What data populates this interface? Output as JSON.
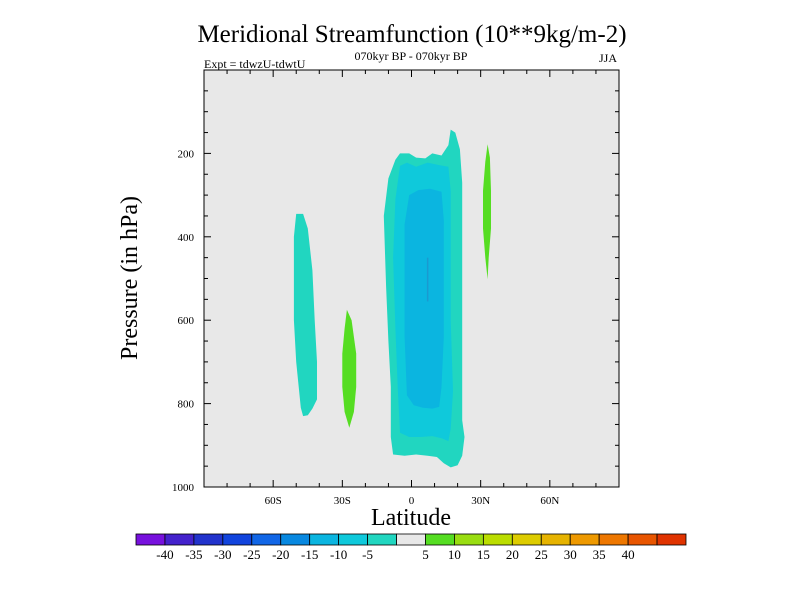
{
  "chart_data": {
    "type": "contour",
    "title": "Meridional Streamfunction (10**9kg/m-2)",
    "subtitle_left": "Expt = tdwzU-tdwtU",
    "subtitle_center": "070kyr BP - 070kyr BP",
    "subtitle_right": "JJA",
    "xlabel": "Latitude",
    "ylabel": "Pressure (in hPa)",
    "xlim": [
      -90,
      90
    ],
    "ylim": [
      1000,
      0
    ],
    "x_ticks": [
      {
        "value": -60,
        "label": "60S"
      },
      {
        "value": -30,
        "label": "30S"
      },
      {
        "value": 0,
        "label": "0"
      },
      {
        "value": 30,
        "label": "30N"
      },
      {
        "value": 60,
        "label": "60N"
      }
    ],
    "y_ticks": [
      {
        "value": 200,
        "label": "200"
      },
      {
        "value": 400,
        "label": "400"
      },
      {
        "value": 600,
        "label": "600"
      },
      {
        "value": 800,
        "label": "800"
      },
      {
        "value": 1000,
        "label": "1000"
      }
    ],
    "background_color": "#e8e8e8",
    "contour_regions": [
      {
        "name": "sh-negative-cell",
        "level": "-10 to -5",
        "color": "#21d6c0",
        "boundary": [
          [
            -50,
            345
          ],
          [
            -47,
            345
          ],
          [
            -45,
            380
          ],
          [
            -43,
            480
          ],
          [
            -42,
            600
          ],
          [
            -41,
            700
          ],
          [
            -41,
            790
          ],
          [
            -43,
            812
          ],
          [
            -45,
            828
          ],
          [
            -47,
            830
          ],
          [
            -48,
            810
          ],
          [
            -50,
            700
          ],
          [
            -51,
            600
          ],
          [
            -51,
            480
          ],
          [
            -51,
            400
          ]
        ]
      },
      {
        "name": "sh-positive-cell",
        "level": "5 to 10",
        "color": "#55dd22",
        "boundary": [
          [
            -28,
            575
          ],
          [
            -26,
            600
          ],
          [
            -24,
            680
          ],
          [
            -24,
            760
          ],
          [
            -25,
            820
          ],
          [
            -27,
            858
          ],
          [
            -29,
            820
          ],
          [
            -30,
            760
          ],
          [
            -30,
            680
          ],
          [
            -29,
            620
          ]
        ]
      },
      {
        "name": "tropical-cell-outer",
        "level": "-10 to -5",
        "color": "#21d6c0",
        "boundary": [
          [
            -7,
            215
          ],
          [
            -5,
            200
          ],
          [
            -1,
            200
          ],
          [
            2,
            210
          ],
          [
            6,
            212
          ],
          [
            9,
            200
          ],
          [
            13,
            205
          ],
          [
            16,
            180
          ],
          [
            17,
            143
          ],
          [
            19,
            150
          ],
          [
            21,
            190
          ],
          [
            22,
            270
          ],
          [
            22,
            450
          ],
          [
            22,
            700
          ],
          [
            22,
            840
          ],
          [
            23,
            880
          ],
          [
            22,
            925
          ],
          [
            20,
            948
          ],
          [
            17,
            953
          ],
          [
            14,
            943
          ],
          [
            11,
            928
          ],
          [
            7,
            925
          ],
          [
            2,
            922
          ],
          [
            -3,
            925
          ],
          [
            -8,
            922
          ],
          [
            -9,
            880
          ],
          [
            -9,
            760
          ],
          [
            -10,
            650
          ],
          [
            -11,
            520
          ],
          [
            -12,
            350
          ],
          [
            -10,
            260
          ]
        ]
      },
      {
        "name": "tropical-cell-mid",
        "level": "-15 to -10",
        "color": "#0fc9db",
        "boundary": [
          [
            -5,
            230
          ],
          [
            -2,
            222
          ],
          [
            2,
            232
          ],
          [
            7,
            222
          ],
          [
            12,
            228
          ],
          [
            16,
            232
          ],
          [
            17,
            290
          ],
          [
            17,
            420
          ],
          [
            17,
            600
          ],
          [
            18,
            770
          ],
          [
            17,
            860
          ],
          [
            16,
            890
          ],
          [
            13,
            883
          ],
          [
            9,
            878
          ],
          [
            4,
            880
          ],
          [
            -1,
            880
          ],
          [
            -5,
            870
          ],
          [
            -6,
            760
          ],
          [
            -7,
            620
          ],
          [
            -8,
            450
          ],
          [
            -7,
            310
          ]
        ]
      },
      {
        "name": "tropical-cell-inner",
        "level": "-20 to -15",
        "color": "#0bb5e0",
        "boundary": [
          [
            -1,
            300
          ],
          [
            3,
            288
          ],
          [
            8,
            285
          ],
          [
            13,
            292
          ],
          [
            14,
            360
          ],
          [
            14,
            490
          ],
          [
            14,
            640
          ],
          [
            13,
            760
          ],
          [
            12,
            808
          ],
          [
            9,
            812
          ],
          [
            5,
            810
          ],
          [
            1,
            804
          ],
          [
            -2,
            780
          ],
          [
            -3,
            640
          ],
          [
            -3,
            480
          ],
          [
            -3,
            370
          ]
        ]
      },
      {
        "name": "nh-positive-cell",
        "level": "5 to 10",
        "color": "#55dd22",
        "boundary": [
          [
            33,
            178
          ],
          [
            34,
            210
          ],
          [
            34.5,
            290
          ],
          [
            34.5,
            380
          ],
          [
            33.5,
            450
          ],
          [
            33,
            502
          ],
          [
            32,
            450
          ],
          [
            31,
            380
          ],
          [
            31,
            290
          ],
          [
            32,
            220
          ]
        ]
      }
    ],
    "center_line": {
      "x": 7,
      "y_top": 450,
      "y_bottom": 555,
      "color": "#1a9ad0"
    },
    "colorbar": {
      "colors": [
        "#7711dd",
        "#4422cc",
        "#2233cc",
        "#1144dd",
        "#1166e6",
        "#0888e0",
        "#0bb5e0",
        "#0fc9db",
        "#21d6c0",
        "#e8e8e8",
        "#55dd22",
        "#99dd11",
        "#bbdd00",
        "#ddcc00",
        "#e6b300",
        "#ee9900",
        "#ee7700",
        "#e85500",
        "#e03300"
      ],
      "labels": [
        "-40",
        "-35",
        "-30",
        "-25",
        "-20",
        "-15",
        "-10",
        "-5",
        "5",
        "10",
        "15",
        "20",
        "25",
        "30",
        "35",
        "40"
      ]
    }
  }
}
